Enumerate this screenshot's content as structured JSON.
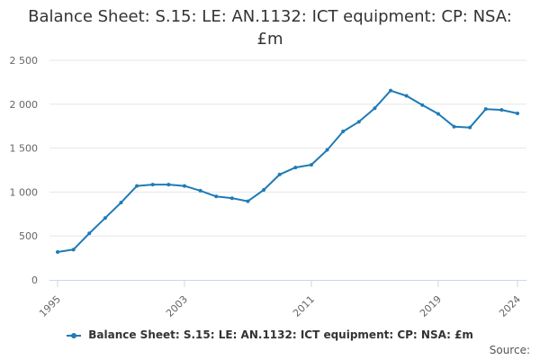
{
  "chart_data": {
    "type": "line",
    "title_line1": "Balance Sheet: S.15: LE: AN.1132: ICT equipment: CP: NSA:",
    "title_line2": "£m",
    "xlabel": "",
    "ylabel": "",
    "ylim": [
      0,
      2500
    ],
    "yticks": [
      0,
      500,
      1000,
      1500,
      2000,
      2500
    ],
    "ytick_labels": [
      "0",
      "500",
      "1 000",
      "1 500",
      "2 000",
      "2 500"
    ],
    "xlim": [
      1995,
      2024
    ],
    "xticks": [
      1995,
      2003,
      2011,
      2019,
      2024
    ],
    "xtick_labels": [
      "1995",
      "2003",
      "2011",
      "2019",
      "2024"
    ],
    "grid": true,
    "legend_position": "bottom",
    "color": "#1f7bb6",
    "series": [
      {
        "name": "Balance Sheet: S.15: LE: AN.1132: ICT equipment: CP: NSA: £m",
        "x": [
          1995,
          1996,
          1997,
          1998,
          1999,
          2000,
          2001,
          2002,
          2003,
          2004,
          2005,
          2006,
          2007,
          2008,
          2009,
          2010,
          2011,
          2012,
          2013,
          2014,
          2015,
          2016,
          2017,
          2018,
          2019,
          2020,
          2021,
          2022,
          2023,
          2024
        ],
        "values": [
          318,
          345,
          530,
          705,
          880,
          1070,
          1085,
          1085,
          1070,
          1015,
          950,
          930,
          895,
          1025,
          1200,
          1280,
          1310,
          1480,
          1690,
          1800,
          1955,
          2155,
          2095,
          1990,
          1890,
          1745,
          1735,
          1945,
          1935,
          1895
        ]
      }
    ]
  },
  "legend": {
    "label": "Balance Sheet: S.15: LE: AN.1132: ICT equipment: CP: NSA: £m"
  },
  "footer": {
    "source": "Source:"
  }
}
